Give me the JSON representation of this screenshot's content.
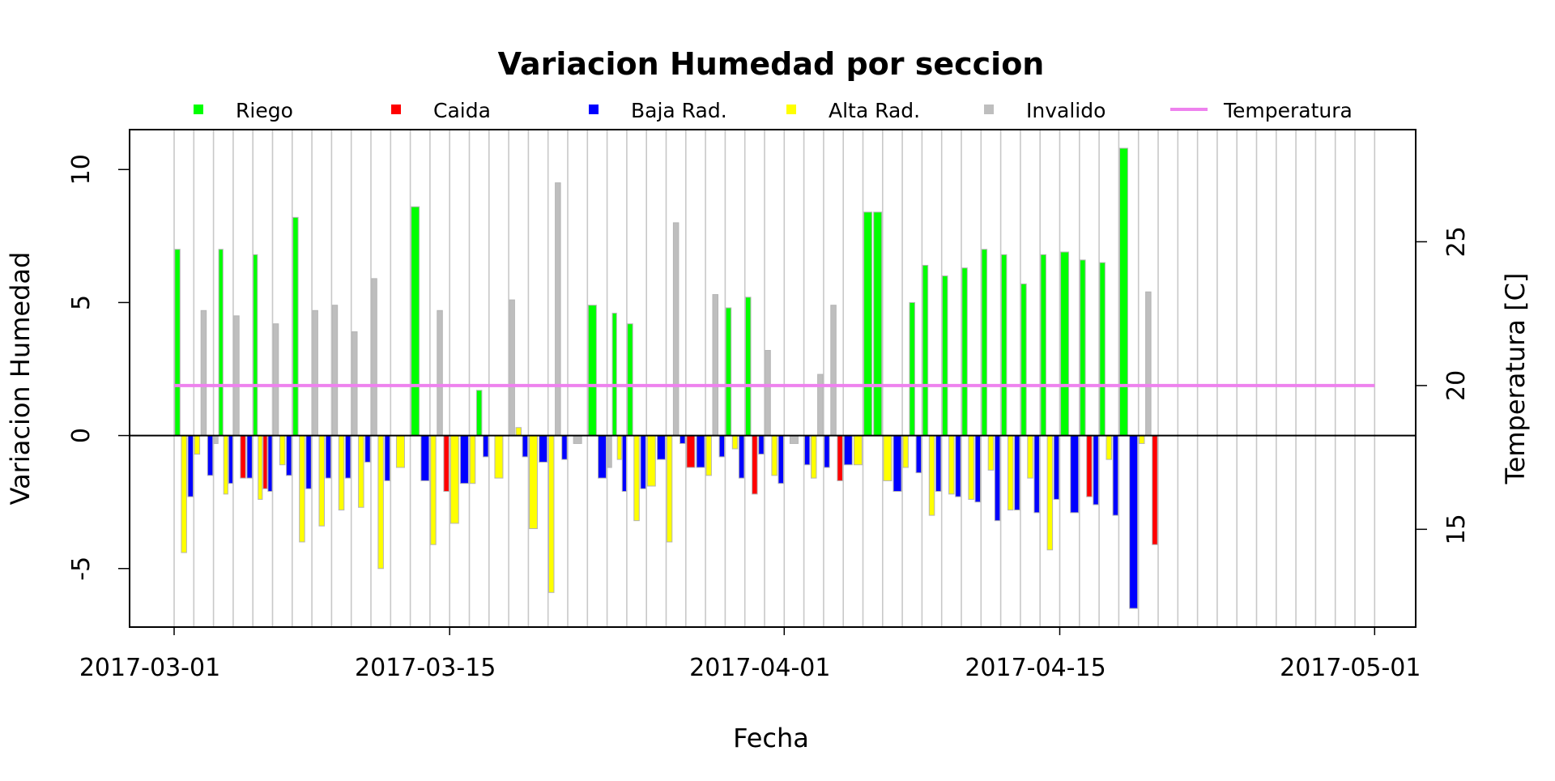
{
  "chart_data": {
    "type": "bar",
    "title": "Variacion Humedad por seccion",
    "xlabel": "Fecha",
    "ylabel": "Variacion Humedad",
    "y2label": "Temperatura [C]",
    "xlim": [
      "2017-03-01",
      "2017-05-01"
    ],
    "ylim": [
      -7.2,
      11.5
    ],
    "y2lim": [
      11.6,
      28.9
    ],
    "yticks": [
      -5,
      0,
      5,
      10
    ],
    "y2ticks": [
      15,
      20,
      25
    ],
    "xticks": [
      "2017-03-01",
      "2017-03-15",
      "2017-04-01",
      "2017-04-15",
      "2017-05-01"
    ],
    "grid": "vertical lines at each day",
    "legend_position": "top, horizontal",
    "legend": [
      {
        "label": "Riego",
        "color": "#00ff00",
        "kind": "point"
      },
      {
        "label": "Caida",
        "color": "#ff0000",
        "kind": "point"
      },
      {
        "label": "Baja Rad.",
        "color": "#0000ff",
        "kind": "point"
      },
      {
        "label": "Alta Rad.",
        "color": "#ffff00",
        "kind": "point"
      },
      {
        "label": "Invalido",
        "color": "#bebebe",
        "kind": "point"
      },
      {
        "label": "Temperatura",
        "color": "#ee82ee",
        "kind": "line"
      }
    ],
    "category_colors": {
      "R": "#00ff00",
      "C": "#ff0000",
      "B": "#0000ff",
      "A": "#ffff00",
      "I": "#bebebe"
    },
    "bars": [
      {
        "date": "2017-03-01",
        "value": 7.0,
        "category": "R"
      },
      {
        "date": "2017-03-01",
        "value": -4.4,
        "category": "A"
      },
      {
        "date": "2017-03-01",
        "value": -2.3,
        "category": "B"
      },
      {
        "date": "2017-03-02",
        "value": -0.7,
        "category": "A"
      },
      {
        "date": "2017-03-02",
        "value": 4.7,
        "category": "I"
      },
      {
        "date": "2017-03-02",
        "value": -1.5,
        "category": "B"
      },
      {
        "date": "2017-03-03",
        "value": -0.3,
        "category": "I"
      },
      {
        "date": "2017-03-03",
        "value": 7.0,
        "category": "R"
      },
      {
        "date": "2017-03-03",
        "value": -2.2,
        "category": "A"
      },
      {
        "date": "2017-03-03",
        "value": -1.8,
        "category": "B"
      },
      {
        "date": "2017-03-04",
        "value": 4.5,
        "category": "I"
      },
      {
        "date": "2017-03-04",
        "value": -1.6,
        "category": "C"
      },
      {
        "date": "2017-03-04",
        "value": -1.6,
        "category": "B"
      },
      {
        "date": "2017-03-05",
        "value": 6.8,
        "category": "R"
      },
      {
        "date": "2017-03-05",
        "value": -2.4,
        "category": "A"
      },
      {
        "date": "2017-03-05",
        "value": -2.0,
        "category": "C"
      },
      {
        "date": "2017-03-05",
        "value": -2.1,
        "category": "B"
      },
      {
        "date": "2017-03-06",
        "value": 4.2,
        "category": "I"
      },
      {
        "date": "2017-03-06",
        "value": -1.1,
        "category": "A"
      },
      {
        "date": "2017-03-06",
        "value": -1.5,
        "category": "B"
      },
      {
        "date": "2017-03-07",
        "value": 8.2,
        "category": "R"
      },
      {
        "date": "2017-03-07",
        "value": -4.0,
        "category": "A"
      },
      {
        "date": "2017-03-07",
        "value": -2.0,
        "category": "B"
      },
      {
        "date": "2017-03-08",
        "value": 4.7,
        "category": "I"
      },
      {
        "date": "2017-03-08",
        "value": -3.4,
        "category": "A"
      },
      {
        "date": "2017-03-08",
        "value": -1.6,
        "category": "B"
      },
      {
        "date": "2017-03-09",
        "value": 4.9,
        "category": "I"
      },
      {
        "date": "2017-03-09",
        "value": -2.8,
        "category": "A"
      },
      {
        "date": "2017-03-09",
        "value": -1.6,
        "category": "B"
      },
      {
        "date": "2017-03-10",
        "value": 3.9,
        "category": "I"
      },
      {
        "date": "2017-03-10",
        "value": -2.7,
        "category": "A"
      },
      {
        "date": "2017-03-10",
        "value": -1.0,
        "category": "B"
      },
      {
        "date": "2017-03-11",
        "value": 5.9,
        "category": "I"
      },
      {
        "date": "2017-03-11",
        "value": -5.0,
        "category": "A"
      },
      {
        "date": "2017-03-11",
        "value": -1.7,
        "category": "B"
      },
      {
        "date": "2017-03-12",
        "value": -1.2,
        "category": "A"
      },
      {
        "date": "2017-03-13",
        "value": 8.6,
        "category": "R"
      },
      {
        "date": "2017-03-13",
        "value": -1.7,
        "category": "B"
      },
      {
        "date": "2017-03-14",
        "value": -4.1,
        "category": "A"
      },
      {
        "date": "2017-03-14",
        "value": 4.7,
        "category": "I"
      },
      {
        "date": "2017-03-14",
        "value": -2.1,
        "category": "C"
      },
      {
        "date": "2017-03-15",
        "value": -3.3,
        "category": "A"
      },
      {
        "date": "2017-03-15",
        "value": -1.8,
        "category": "B"
      },
      {
        "date": "2017-03-16",
        "value": -1.8,
        "category": "A"
      },
      {
        "date": "2017-03-16",
        "value": 1.7,
        "category": "R"
      },
      {
        "date": "2017-03-16",
        "value": -0.8,
        "category": "B"
      },
      {
        "date": "2017-03-17",
        "value": -1.6,
        "category": "A"
      },
      {
        "date": "2017-03-18",
        "value": 5.1,
        "category": "I"
      },
      {
        "date": "2017-03-18",
        "value": 0.3,
        "category": "A"
      },
      {
        "date": "2017-03-18",
        "value": -0.8,
        "category": "B"
      },
      {
        "date": "2017-03-19",
        "value": -3.5,
        "category": "A"
      },
      {
        "date": "2017-03-19",
        "value": -1.0,
        "category": "B"
      },
      {
        "date": "2017-03-20",
        "value": -5.9,
        "category": "A"
      },
      {
        "date": "2017-03-20",
        "value": 9.5,
        "category": "I"
      },
      {
        "date": "2017-03-20",
        "value": -0.9,
        "category": "B"
      },
      {
        "date": "2017-03-21",
        "value": -0.3,
        "category": "I"
      },
      {
        "date": "2017-03-22",
        "value": 4.9,
        "category": "R"
      },
      {
        "date": "2017-03-22",
        "value": -1.6,
        "category": "B"
      },
      {
        "date": "2017-03-23",
        "value": -1.2,
        "category": "I"
      },
      {
        "date": "2017-03-23",
        "value": 4.6,
        "category": "R"
      },
      {
        "date": "2017-03-23",
        "value": -0.9,
        "category": "A"
      },
      {
        "date": "2017-03-23",
        "value": -2.1,
        "category": "B"
      },
      {
        "date": "2017-03-24",
        "value": 4.2,
        "category": "R"
      },
      {
        "date": "2017-03-24",
        "value": -3.2,
        "category": "A"
      },
      {
        "date": "2017-03-24",
        "value": -2.0,
        "category": "B"
      },
      {
        "date": "2017-03-25",
        "value": -1.9,
        "category": "A"
      },
      {
        "date": "2017-03-25",
        "value": -0.9,
        "category": "B"
      },
      {
        "date": "2017-03-26",
        "value": -4.0,
        "category": "A"
      },
      {
        "date": "2017-03-26",
        "value": 8.0,
        "category": "I"
      },
      {
        "date": "2017-03-26",
        "value": -0.3,
        "category": "B"
      },
      {
        "date": "2017-03-27",
        "value": -1.2,
        "category": "C"
      },
      {
        "date": "2017-03-27",
        "value": -1.2,
        "category": "B"
      },
      {
        "date": "2017-03-28",
        "value": -1.5,
        "category": "A"
      },
      {
        "date": "2017-03-28",
        "value": 5.3,
        "category": "I"
      },
      {
        "date": "2017-03-28",
        "value": -0.8,
        "category": "B"
      },
      {
        "date": "2017-03-29",
        "value": 4.8,
        "category": "R"
      },
      {
        "date": "2017-03-29",
        "value": -0.5,
        "category": "A"
      },
      {
        "date": "2017-03-29",
        "value": -1.6,
        "category": "B"
      },
      {
        "date": "2017-03-30",
        "value": 5.2,
        "category": "R"
      },
      {
        "date": "2017-03-30",
        "value": -2.2,
        "category": "C"
      },
      {
        "date": "2017-03-30",
        "value": -0.7,
        "category": "B"
      },
      {
        "date": "2017-03-31",
        "value": 3.2,
        "category": "I"
      },
      {
        "date": "2017-03-31",
        "value": -1.5,
        "category": "A"
      },
      {
        "date": "2017-03-31",
        "value": -1.8,
        "category": "B"
      },
      {
        "date": "2017-04-01",
        "value": -0.3,
        "category": "I"
      },
      {
        "date": "2017-04-02",
        "value": -1.1,
        "category": "B"
      },
      {
        "date": "2017-04-02",
        "value": -1.6,
        "category": "A"
      },
      {
        "date": "2017-04-02",
        "value": 2.3,
        "category": "I"
      },
      {
        "date": "2017-04-03",
        "value": -1.2,
        "category": "B"
      },
      {
        "date": "2017-04-03",
        "value": 4.9,
        "category": "I"
      },
      {
        "date": "2017-04-03",
        "value": -1.7,
        "category": "C"
      },
      {
        "date": "2017-04-04",
        "value": -1.1,
        "category": "B"
      },
      {
        "date": "2017-04-04",
        "value": -1.1,
        "category": "A"
      },
      {
        "date": "2017-04-05",
        "value": 8.4,
        "category": "R"
      },
      {
        "date": "2017-04-05",
        "value": 8.4,
        "category": "R"
      },
      {
        "date": "2017-04-06",
        "value": -1.7,
        "category": "A"
      },
      {
        "date": "2017-04-06",
        "value": -2.1,
        "category": "B"
      },
      {
        "date": "2017-04-07",
        "value": -1.2,
        "category": "A"
      },
      {
        "date": "2017-04-07",
        "value": 5.0,
        "category": "R"
      },
      {
        "date": "2017-04-07",
        "value": -1.4,
        "category": "B"
      },
      {
        "date": "2017-04-08",
        "value": 6.4,
        "category": "R"
      },
      {
        "date": "2017-04-08",
        "value": -3.0,
        "category": "A"
      },
      {
        "date": "2017-04-08",
        "value": -2.1,
        "category": "B"
      },
      {
        "date": "2017-04-09",
        "value": 6.0,
        "category": "R"
      },
      {
        "date": "2017-04-09",
        "value": -2.2,
        "category": "A"
      },
      {
        "date": "2017-04-09",
        "value": -2.3,
        "category": "B"
      },
      {
        "date": "2017-04-10",
        "value": 6.3,
        "category": "R"
      },
      {
        "date": "2017-04-10",
        "value": -2.4,
        "category": "A"
      },
      {
        "date": "2017-04-10",
        "value": -2.5,
        "category": "B"
      },
      {
        "date": "2017-04-11",
        "value": 7.0,
        "category": "R"
      },
      {
        "date": "2017-04-11",
        "value": -1.3,
        "category": "A"
      },
      {
        "date": "2017-04-11",
        "value": -3.2,
        "category": "B"
      },
      {
        "date": "2017-04-12",
        "value": 6.8,
        "category": "R"
      },
      {
        "date": "2017-04-12",
        "value": -2.8,
        "category": "A"
      },
      {
        "date": "2017-04-12",
        "value": -2.8,
        "category": "B"
      },
      {
        "date": "2017-04-13",
        "value": 5.7,
        "category": "R"
      },
      {
        "date": "2017-04-13",
        "value": -1.6,
        "category": "A"
      },
      {
        "date": "2017-04-13",
        "value": -2.9,
        "category": "B"
      },
      {
        "date": "2017-04-14",
        "value": 6.8,
        "category": "R"
      },
      {
        "date": "2017-04-14",
        "value": -4.3,
        "category": "A"
      },
      {
        "date": "2017-04-14",
        "value": -2.4,
        "category": "B"
      },
      {
        "date": "2017-04-15",
        "value": 6.9,
        "category": "R"
      },
      {
        "date": "2017-04-15",
        "value": -2.9,
        "category": "B"
      },
      {
        "date": "2017-04-16",
        "value": 6.6,
        "category": "R"
      },
      {
        "date": "2017-04-16",
        "value": -2.3,
        "category": "C"
      },
      {
        "date": "2017-04-16",
        "value": -2.6,
        "category": "B"
      },
      {
        "date": "2017-04-17",
        "value": 6.5,
        "category": "R"
      },
      {
        "date": "2017-04-17",
        "value": -0.9,
        "category": "A"
      },
      {
        "date": "2017-04-17",
        "value": -3.0,
        "category": "B"
      },
      {
        "date": "2017-04-18",
        "value": 10.8,
        "category": "R"
      },
      {
        "date": "2017-04-18",
        "value": -6.5,
        "category": "B"
      },
      {
        "date": "2017-04-19",
        "value": -0.3,
        "category": "A"
      },
      {
        "date": "2017-04-19",
        "value": 5.4,
        "category": "I"
      },
      {
        "date": "2017-04-19",
        "value": -4.1,
        "category": "C"
      }
    ],
    "series": [
      {
        "name": "Temperatura",
        "axis": "right",
        "from": "2017-03-01",
        "to": "2017-05-01",
        "value": 20.0,
        "color": "#ee82ee"
      }
    ]
  }
}
